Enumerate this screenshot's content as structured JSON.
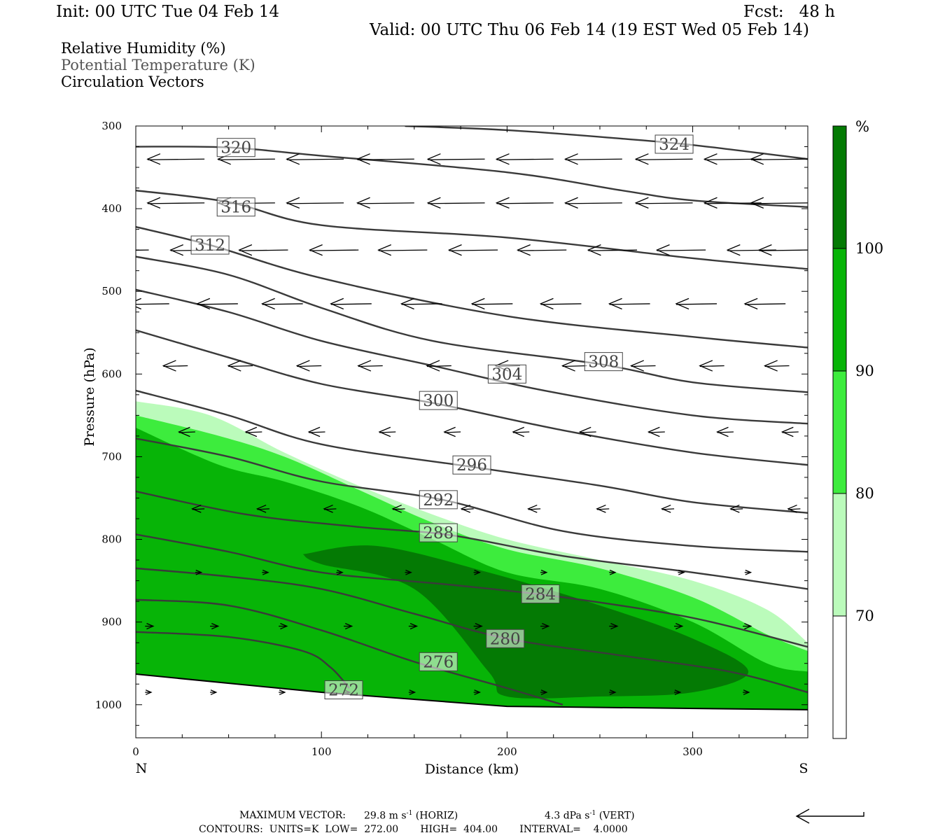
{
  "header": {
    "init": "Init: 00 UTC Tue 04 Feb 14",
    "fcst": "Fcst:   48 h",
    "valid": "Valid: 00 UTC Thu 06 Feb 14 (19 EST Wed 05 Feb 14)"
  },
  "legend": {
    "rh": "Relative Humidity (%)",
    "theta": "Potential Temperature (K)",
    "vectors": "Circulation Vectors"
  },
  "colorbar": {
    "unit": "%",
    "levels": [
      70,
      80,
      90,
      100
    ],
    "colors": [
      "#ffffff",
      "#bbfbbb",
      "#3dec3d",
      "#07b407",
      "#047a04"
    ]
  },
  "footer": {
    "max_vector_label": "MAXIMUM VECTOR:",
    "horiz_value": "29.8 m s",
    "horiz_unit": "(HORIZ)",
    "vert_value": "4.3 dPa s",
    "vert_unit": "(VERT)",
    "exp": "-1",
    "contours": "CONTOURS:  UNITS=K  LOW=  272.00       HIGH=  404.00       INTERVAL=    4.0000"
  },
  "chart_data": {
    "type": "cross-section",
    "title": "",
    "xlabel": "Distance (km)",
    "ylabel": "Pressure (hPa)",
    "xlim": [
      0,
      362
    ],
    "ylim": [
      1040,
      300
    ],
    "x_ticks": [
      0,
      100,
      200,
      300
    ],
    "y_ticks": [
      300,
      400,
      500,
      600,
      700,
      800,
      900,
      1000
    ],
    "x_end_labels": {
      "left": "N",
      "right": "S"
    },
    "terrain_surface": [
      [
        0,
        963
      ],
      [
        100,
        985
      ],
      [
        200,
        1002
      ],
      [
        362,
        1006
      ]
    ],
    "rh_fill": [
      {
        "level": 70,
        "boundary": [
          [
            0,
            633
          ],
          [
            40,
            650
          ],
          [
            80,
            695
          ],
          [
            120,
            735
          ],
          [
            160,
            770
          ],
          [
            200,
            800
          ],
          [
            250,
            825
          ],
          [
            300,
            850
          ],
          [
            340,
            885
          ],
          [
            362,
            925
          ]
        ]
      },
      {
        "level": 80,
        "boundary": [
          [
            0,
            650
          ],
          [
            45,
            675
          ],
          [
            80,
            700
          ],
          [
            120,
            740
          ],
          [
            160,
            780
          ],
          [
            200,
            812
          ],
          [
            250,
            835
          ],
          [
            300,
            870
          ],
          [
            340,
            915
          ],
          [
            362,
            935
          ]
        ]
      },
      {
        "level": 90,
        "boundary": [
          [
            0,
            665
          ],
          [
            45,
            710
          ],
          [
            80,
            730
          ],
          [
            120,
            760
          ],
          [
            160,
            800
          ],
          [
            200,
            840
          ],
          [
            250,
            860
          ],
          [
            300,
            900
          ],
          [
            340,
            950
          ],
          [
            362,
            960
          ]
        ]
      },
      {
        "level": 100,
        "regions": [
          [
            [
              90,
              818
            ],
            [
              130,
              808
            ],
            [
              190,
              840
            ],
            [
              250,
              880
            ],
            [
              300,
              920
            ],
            [
              330,
              960
            ],
            [
              300,
              985
            ],
            [
              250,
              990
            ],
            [
              200,
              990
            ],
            [
              190,
              960
            ],
            [
              150,
              860
            ],
            [
              100,
              830
            ]
          ]
        ]
      }
    ],
    "theta_contours": [
      {
        "value": 324,
        "label_at": [
          290,
          322
        ],
        "points": [
          [
            145,
            300
          ],
          [
            200,
            305
          ],
          [
            260,
            315
          ],
          [
            300,
            323
          ],
          [
            362,
            340
          ]
        ]
      },
      {
        "value": 320,
        "label_at": [
          54,
          326
        ],
        "points": [
          [
            0,
            325
          ],
          [
            50,
            326
          ],
          [
            100,
            336
          ],
          [
            200,
            356
          ],
          [
            262,
            378
          ],
          [
            300,
            390
          ],
          [
            362,
            398
          ]
        ]
      },
      {
        "value": 316,
        "label_at": [
          54,
          398
        ],
        "points": [
          [
            0,
            378
          ],
          [
            50,
            392
          ],
          [
            100,
            420
          ],
          [
            200,
            435
          ],
          [
            300,
            460
          ],
          [
            362,
            473
          ]
        ]
      },
      {
        "value": 312,
        "label_at": [
          40,
          444
        ],
        "points": [
          [
            0,
            422
          ],
          [
            40,
            444
          ],
          [
            100,
            484
          ],
          [
            200,
            530
          ],
          [
            300,
            555
          ],
          [
            362,
            568
          ]
        ]
      },
      {
        "value": 308,
        "label_at": [
          252,
          585
        ],
        "points": [
          [
            0,
            458
          ],
          [
            50,
            480
          ],
          [
            100,
            520
          ],
          [
            160,
            560
          ],
          [
            250,
            588
          ],
          [
            300,
            610
          ],
          [
            362,
            622
          ]
        ]
      },
      {
        "value": 304,
        "label_at": [
          200,
          600
        ],
        "points": [
          [
            0,
            498
          ],
          [
            50,
            525
          ],
          [
            100,
            560
          ],
          [
            160,
            590
          ],
          [
            220,
            620
          ],
          [
            300,
            650
          ],
          [
            362,
            660
          ]
        ]
      },
      {
        "value": 300,
        "label_at": [
          163,
          632
        ],
        "points": [
          [
            0,
            547
          ],
          [
            50,
            580
          ],
          [
            100,
            612
          ],
          [
            160,
            635
          ],
          [
            230,
            668
          ],
          [
            300,
            695
          ],
          [
            362,
            710
          ]
        ]
      },
      {
        "value": 296,
        "label_at": [
          181,
          710
        ],
        "points": [
          [
            0,
            620
          ],
          [
            50,
            650
          ],
          [
            100,
            685
          ],
          [
            180,
            712
          ],
          [
            250,
            735
          ],
          [
            300,
            755
          ],
          [
            362,
            768
          ]
        ]
      },
      {
        "value": 292,
        "label_at": [
          163,
          752
        ],
        "points": [
          [
            0,
            678
          ],
          [
            50,
            700
          ],
          [
            100,
            730
          ],
          [
            165,
            752
          ],
          [
            230,
            790
          ],
          [
            300,
            808
          ],
          [
            362,
            815
          ]
        ]
      },
      {
        "value": 288,
        "label_at": [
          163,
          792
        ],
        "points": [
          [
            0,
            742
          ],
          [
            60,
            770
          ],
          [
            120,
            785
          ],
          [
            170,
            795
          ],
          [
            230,
            820
          ],
          [
            300,
            840
          ],
          [
            362,
            860
          ]
        ]
      },
      {
        "value": 284,
        "label_at": [
          218,
          866
        ],
        "points": [
          [
            0,
            794
          ],
          [
            50,
            815
          ],
          [
            100,
            840
          ],
          [
            170,
            855
          ],
          [
            230,
            870
          ],
          [
            300,
            895
          ],
          [
            362,
            930
          ]
        ]
      },
      {
        "value": 280,
        "label_at": [
          199,
          920
        ],
        "points": [
          [
            0,
            835
          ],
          [
            50,
            845
          ],
          [
            100,
            860
          ],
          [
            150,
            890
          ],
          [
            200,
            920
          ],
          [
            260,
            940
          ],
          [
            320,
            960
          ],
          [
            362,
            985
          ]
        ]
      },
      {
        "value": 276,
        "label_at": [
          163,
          948
        ],
        "points": [
          [
            0,
            873
          ],
          [
            50,
            880
          ],
          [
            100,
            910
          ],
          [
            150,
            948
          ],
          [
            200,
            980
          ],
          [
            230,
            1000
          ]
        ]
      },
      {
        "value": 272,
        "label_at": [
          112,
          982
        ],
        "points": [
          [
            0,
            912
          ],
          [
            50,
            918
          ],
          [
            90,
            935
          ],
          [
            105,
            955
          ],
          [
            115,
            980
          ]
        ]
      }
    ],
    "vectors": [
      {
        "row": 340,
        "xs": [
          0,
          37,
          75,
          112,
          150,
          188,
          225,
          262,
          300,
          337,
          362
        ],
        "u": -28
      },
      {
        "row": 393,
        "xs": [
          0,
          37,
          75,
          112,
          150,
          188,
          225,
          262,
          300,
          337,
          362
        ],
        "u": -28
      },
      {
        "row": 450,
        "xs": [
          7,
          45,
          82,
          120,
          157,
          195,
          232,
          270,
          307,
          345,
          362
        ],
        "u": -24
      },
      {
        "row": 515,
        "xs": [
          18,
          55,
          90,
          127,
          165,
          203,
          240,
          277,
          313,
          350
        ],
        "u": -20
      },
      {
        "row": 590,
        "xs": [
          28,
          63,
          100,
          133,
          170,
          207,
          243,
          280,
          317,
          352
        ],
        "u": -12
      },
      {
        "row": 670,
        "xs": [
          32,
          68,
          102,
          140,
          175,
          212,
          248,
          285,
          322,
          357
        ],
        "u": -8
      },
      {
        "row": 763,
        "xs": [
          37,
          72,
          108,
          145,
          182,
          218,
          255,
          290,
          327,
          358
        ],
        "u": -6
      },
      {
        "row": 840,
        "xs": [
          32,
          68,
          108,
          145,
          182,
          218,
          255,
          292,
          328
        ],
        "u": 3
      },
      {
        "row": 905,
        "xs": [
          5,
          40,
          77,
          112,
          147,
          182,
          218,
          255,
          290,
          327
        ],
        "u": 4
      },
      {
        "row": 985,
        "xs": [
          5,
          40,
          77,
          112,
          147,
          182,
          218,
          255,
          290,
          327,
          362
        ],
        "u": 3
      }
    ]
  }
}
